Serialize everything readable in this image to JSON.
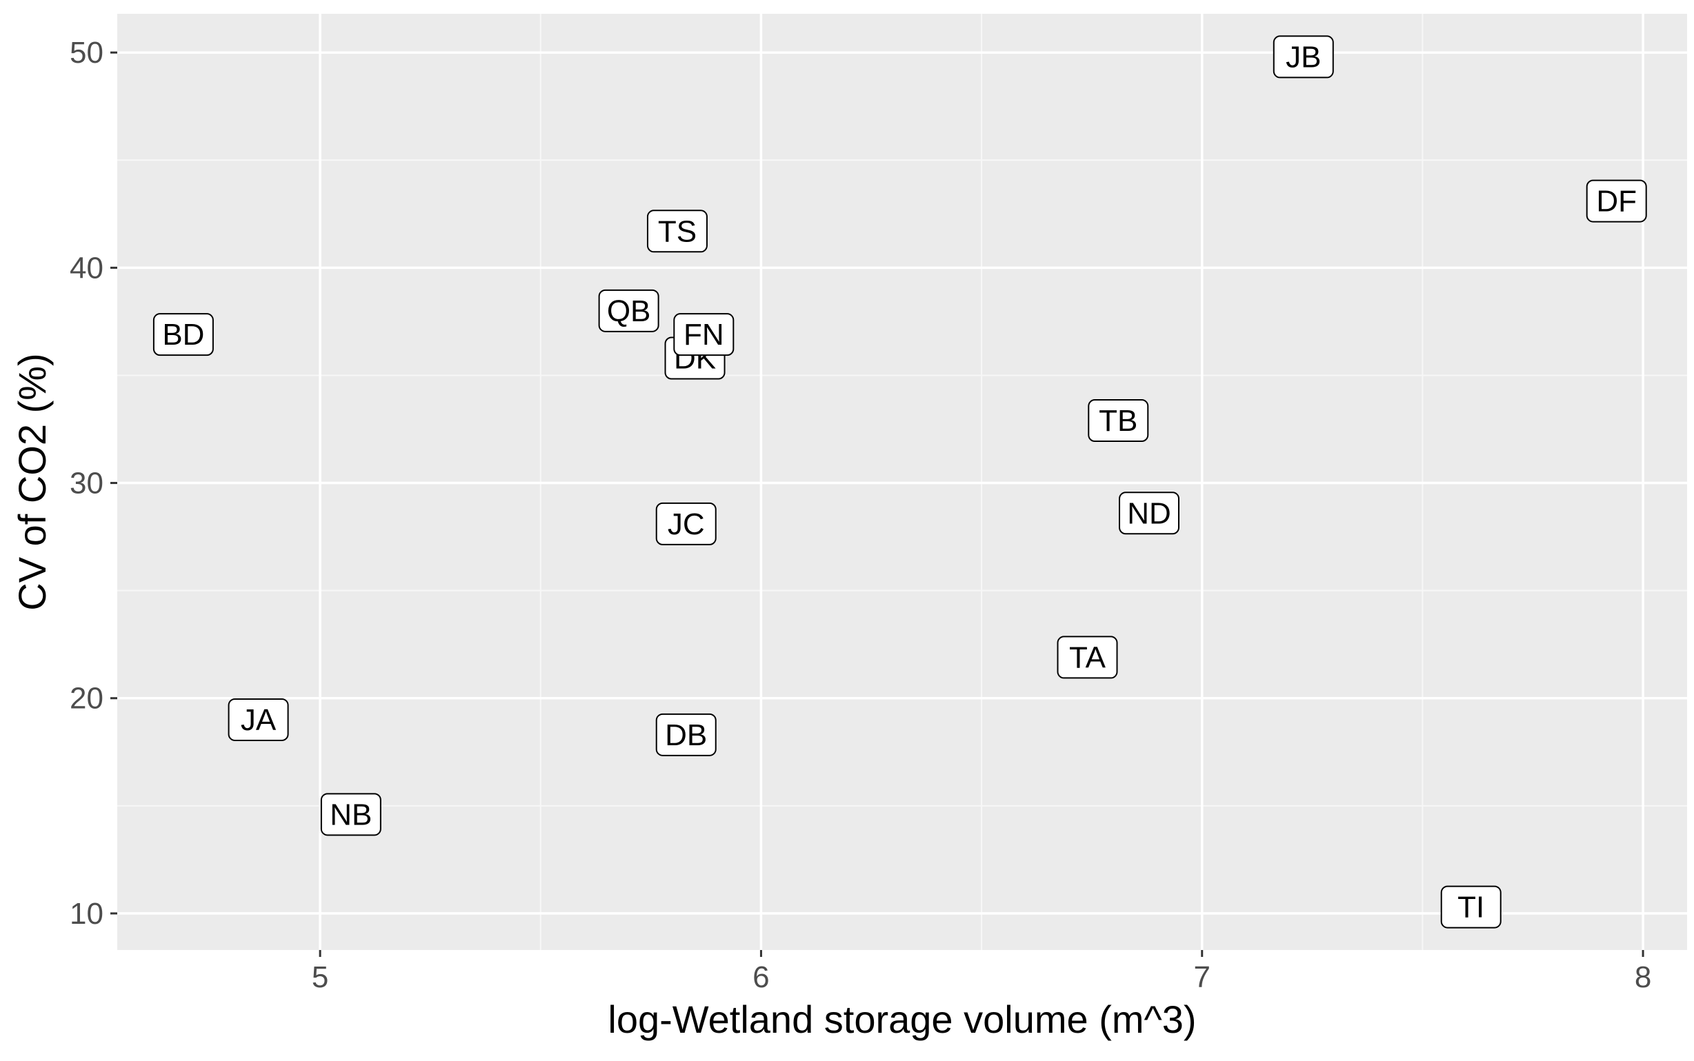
{
  "chart_data": {
    "type": "scatter",
    "title": "",
    "xlabel": "log-Wetland storage volume (m^3)",
    "ylabel": "CV of CO2 (%)",
    "xlim": [
      4.54,
      8.1
    ],
    "ylim": [
      8.3,
      51.8
    ],
    "x_ticks": [
      5,
      6,
      7,
      8
    ],
    "x_tick_labels": [
      "5",
      "6",
      "7",
      "8"
    ],
    "y_ticks": [
      10,
      20,
      30,
      40,
      50
    ],
    "y_tick_labels": [
      "10",
      "20",
      "30",
      "40",
      "50"
    ],
    "grid": true,
    "legend": "none",
    "colors": {
      "panel_background": "#ebebeb",
      "grid_major": "#ffffff",
      "grid_minor": "#f7f7f7",
      "label_fill": "#ffffff",
      "label_border": "#000000",
      "tick_text": "#4d4d4d",
      "axis_title": "#000000"
    },
    "points": [
      {
        "label": "JB",
        "x": 7.23,
        "y": 49.8
      },
      {
        "label": "DF",
        "x": 7.94,
        "y": 43.1
      },
      {
        "label": "TS",
        "x": 5.81,
        "y": 41.7
      },
      {
        "label": "QB",
        "x": 5.7,
        "y": 38.0
      },
      {
        "label": "BD",
        "x": 4.69,
        "y": 36.9
      },
      {
        "label": "DK",
        "x": 5.85,
        "y": 35.8
      },
      {
        "label": "FN",
        "x": 5.87,
        "y": 36.9
      },
      {
        "label": "TB",
        "x": 6.81,
        "y": 32.9
      },
      {
        "label": "ND",
        "x": 6.88,
        "y": 28.6
      },
      {
        "label": "JC",
        "x": 5.83,
        "y": 28.1
      },
      {
        "label": "TA",
        "x": 6.74,
        "y": 21.9
      },
      {
        "label": "JA",
        "x": 4.86,
        "y": 19.0
      },
      {
        "label": "DB",
        "x": 5.83,
        "y": 18.3
      },
      {
        "label": "NB",
        "x": 5.07,
        "y": 14.6
      },
      {
        "label": "TI",
        "x": 7.61,
        "y": 10.3
      }
    ]
  }
}
